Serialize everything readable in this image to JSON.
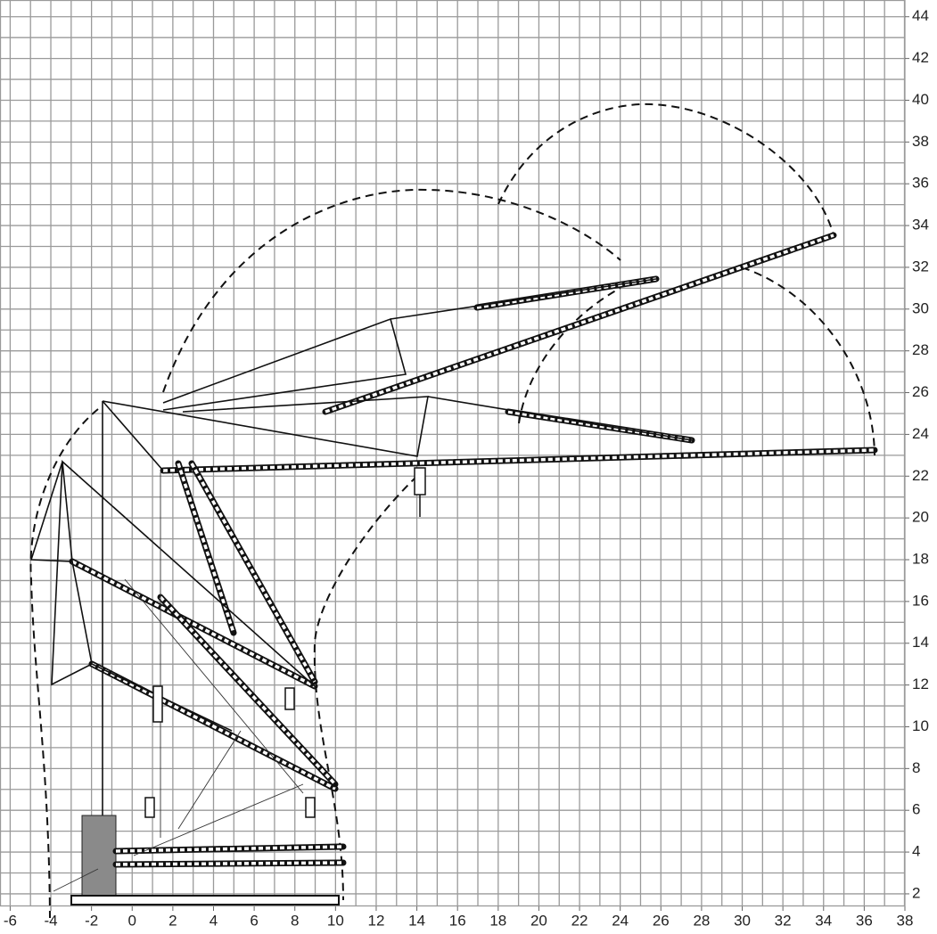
{
  "axes": {
    "xlim": [
      -6.5,
      38
    ],
    "ylim": [
      1.4,
      44.8
    ],
    "grid_step": 1,
    "xticks": [
      -6,
      -4,
      -2,
      0,
      2,
      4,
      6,
      8,
      10,
      12,
      14,
      16,
      18,
      20,
      22,
      24,
      26,
      28,
      30,
      32,
      34,
      36,
      38
    ],
    "yticks": [
      2,
      4,
      6,
      8,
      10,
      12,
      14,
      16,
      18,
      20,
      22,
      24,
      26,
      28,
      30,
      32,
      34,
      36,
      38,
      40,
      42,
      44
    ]
  }
}
